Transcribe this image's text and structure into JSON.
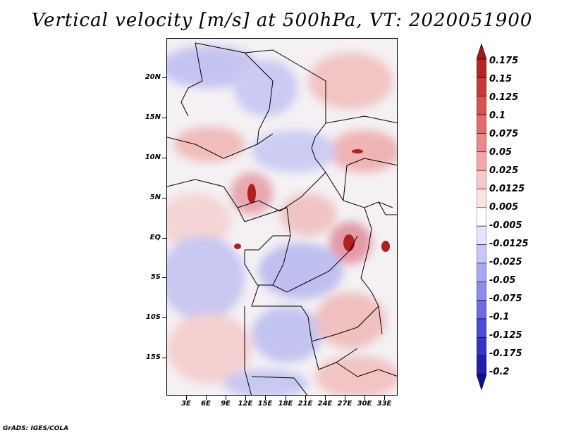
{
  "title": "Vertical velocity [m/s] at 500hPa, VT: 2020051900",
  "footer": "GrADS: IGES/COLA",
  "map": {
    "lat_labels": [
      "20N",
      "15N",
      "10N",
      "5N",
      "EQ",
      "5S",
      "10S",
      "15S"
    ],
    "lon_labels": [
      "3E",
      "6E",
      "9E",
      "12E",
      "15E",
      "18E",
      "21E",
      "24E",
      "27E",
      "30E",
      "33E"
    ]
  },
  "colorbar": {
    "labels": [
      "0.175",
      "0.15",
      "0.125",
      "0.1",
      "0.075",
      "0.05",
      "0.025",
      "0.0125",
      "0.005",
      "-0.005",
      "-0.0125",
      "-0.025",
      "-0.05",
      "-0.075",
      "-0.1",
      "-0.125",
      "-0.175",
      "-0.2"
    ],
    "colors": [
      "#a01818",
      "#b82424",
      "#cc3838",
      "#dc5050",
      "#e46c6c",
      "#ec8888",
      "#f4a8a8",
      "#f8c8c8",
      "#fce4e4",
      "#ffffff",
      "#e4e4fc",
      "#c8c8f8",
      "#a8a8f4",
      "#8c8cec",
      "#6c6ce4",
      "#4c4cd8",
      "#3434c8",
      "#2020b0",
      "#10108c"
    ]
  }
}
